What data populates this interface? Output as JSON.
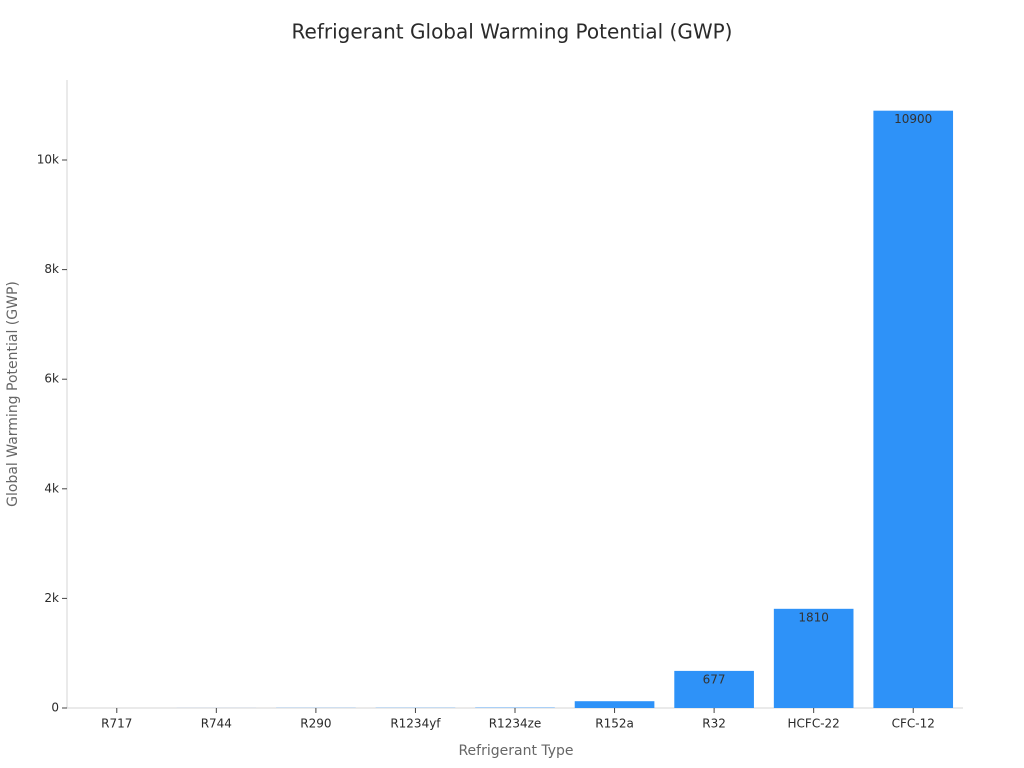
{
  "chart_data": {
    "type": "bar",
    "title": "Refrigerant Global Warming Potential (GWP)",
    "x_label": "Refrigerant Type",
    "y_label": "Global Warming Potential (GWP)",
    "categories": [
      "R717",
      "R744",
      "R290",
      "R1234yf",
      "R1234ze",
      "R152a",
      "R32",
      "HCFC-22",
      "CFC-12"
    ],
    "values": [
      0,
      1,
      3,
      4,
      7,
      124,
      677,
      1810,
      10900
    ],
    "color": "#2e92f8",
    "show_values": true,
    "ylim": [
      0,
      11460
    ],
    "yticks": [
      0,
      {
        "value": 2000,
        "label": "2k"
      },
      {
        "value": 4000,
        "label": "4k"
      },
      {
        "value": 6000,
        "label": "6k"
      },
      {
        "value": 8000,
        "label": "8k"
      },
      {
        "value": 10000,
        "label": "10k"
      }
    ]
  }
}
